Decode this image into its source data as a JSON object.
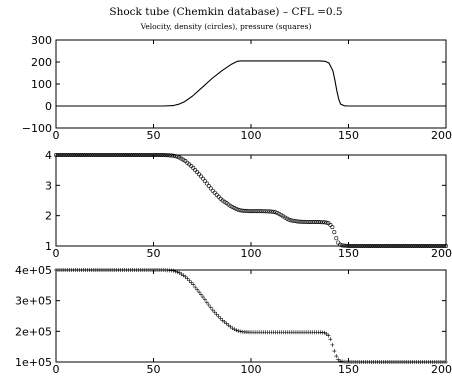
{
  "chart_data": [
    {
      "type": "line",
      "title": "Shock tube (Chemkin database) – CFL =0.5",
      "subtitle": "Velocity, density (circles), pressure (squares)",
      "xlabel": "",
      "ylabel": "",
      "xlim": [
        0,
        200
      ],
      "ylim": [
        -100,
        300
      ],
      "xticks": [
        0,
        50,
        100,
        150,
        200
      ],
      "yticks": [
        -100,
        0,
        100,
        200,
        300
      ],
      "ytick_labels": [
        "−100",
        "0",
        "100",
        "200",
        "300"
      ],
      "marker": "none",
      "grid": false,
      "series": [
        {
          "x": [
            0,
            55,
            60,
            63,
            66,
            70,
            75,
            80,
            85,
            90,
            93,
            95,
            100,
            120,
            135,
            138,
            140,
            142,
            143,
            144,
            145,
            146,
            148,
            150,
            200
          ],
          "y": [
            0,
            0,
            2,
            8,
            20,
            45,
            85,
            125,
            160,
            190,
            203,
            205,
            205,
            205,
            205,
            203,
            195,
            160,
            120,
            70,
            30,
            8,
            1,
            0,
            0
          ]
        }
      ]
    },
    {
      "type": "scatter",
      "title": "",
      "xlabel": "",
      "ylabel": "",
      "xlim": [
        0,
        200
      ],
      "ylim": [
        1,
        4
      ],
      "xticks": [
        0,
        50,
        100,
        150,
        200
      ],
      "yticks": [
        1,
        2,
        3,
        4
      ],
      "ytick_labels": [
        "1",
        "2",
        "3",
        "4"
      ],
      "marker": "circle",
      "grid": false,
      "series": [
        {
          "x": [
            0,
            55,
            60,
            63,
            66,
            70,
            75,
            80,
            85,
            90,
            93,
            96,
            100,
            105,
            110,
            113,
            116,
            118,
            120,
            125,
            130,
            135,
            138,
            140,
            142,
            143,
            144,
            145,
            146,
            148,
            150,
            155,
            200
          ],
          "y": [
            4,
            4,
            3.98,
            3.93,
            3.82,
            3.6,
            3.25,
            2.85,
            2.52,
            2.3,
            2.2,
            2.16,
            2.15,
            2.15,
            2.14,
            2.11,
            2.0,
            1.92,
            1.85,
            1.8,
            1.79,
            1.79,
            1.78,
            1.75,
            1.6,
            1.4,
            1.2,
            1.08,
            1.03,
            1.01,
            1.0,
            1.0,
            1.0
          ]
        }
      ]
    },
    {
      "type": "scatter",
      "title": "",
      "xlabel": "",
      "ylabel": "",
      "xlim": [
        0,
        200
      ],
      "ylim": [
        100000,
        400000
      ],
      "xticks": [
        0,
        50,
        100,
        150,
        200
      ],
      "yticks": [
        100000,
        200000,
        300000,
        400000
      ],
      "ytick_labels": [
        "1e+05",
        "2e+05",
        "3e+05",
        "4e+05"
      ],
      "marker": "plus",
      "grid": false,
      "series": [
        {
          "x": [
            0,
            55,
            60,
            63,
            66,
            70,
            75,
            80,
            85,
            90,
            93,
            96,
            100,
            120,
            135,
            138,
            140,
            141,
            142,
            143,
            144,
            145,
            146,
            148,
            150,
            155,
            200
          ],
          "y": [
            400000,
            400000,
            398000,
            392000,
            380000,
            355000,
            315000,
            272000,
            238000,
            212000,
            202000,
            198000,
            197000,
            197000,
            197000,
            195000,
            185000,
            170000,
            150000,
            130000,
            115000,
            106000,
            102000,
            100500,
            100000,
            100000,
            100000
          ]
        }
      ]
    }
  ]
}
